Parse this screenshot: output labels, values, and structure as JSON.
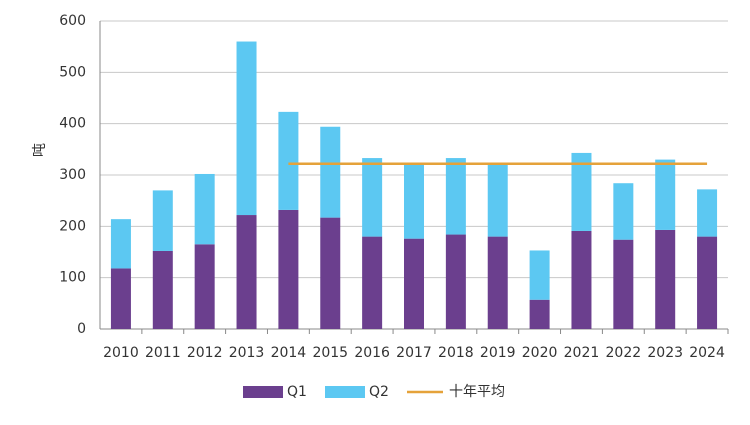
{
  "chart_data": {
    "type": "stacked-bar",
    "y_label": "吨",
    "categories": [
      "2010",
      "2011",
      "2012",
      "2013",
      "2014",
      "2015",
      "2016",
      "2017",
      "2018",
      "2019",
      "2020",
      "2021",
      "2022",
      "2023",
      "2024"
    ],
    "series": [
      {
        "name": "Q1",
        "color": "#6b3f8e",
        "values": [
          118,
          152,
          165,
          222,
          232,
          217,
          180,
          176,
          184,
          180,
          57,
          191,
          174,
          193,
          180
        ]
      },
      {
        "name": "Q2",
        "color": "#5cc8f2",
        "values": [
          96,
          118,
          137,
          338,
          191,
          177,
          153,
          144,
          149,
          140,
          96,
          152,
          110,
          137,
          92
        ]
      },
      {
        "name": "十年平均",
        "type": "line",
        "color": "#e5a23a",
        "values": [
          null,
          null,
          null,
          null,
          322,
          322,
          322,
          322,
          322,
          322,
          322,
          322,
          322,
          322,
          322
        ]
      }
    ],
    "ylim": [
      0,
      600
    ],
    "yticks": [
      0,
      100,
      200,
      300,
      400,
      500,
      600
    ],
    "grid": true,
    "legend": "bottom"
  }
}
